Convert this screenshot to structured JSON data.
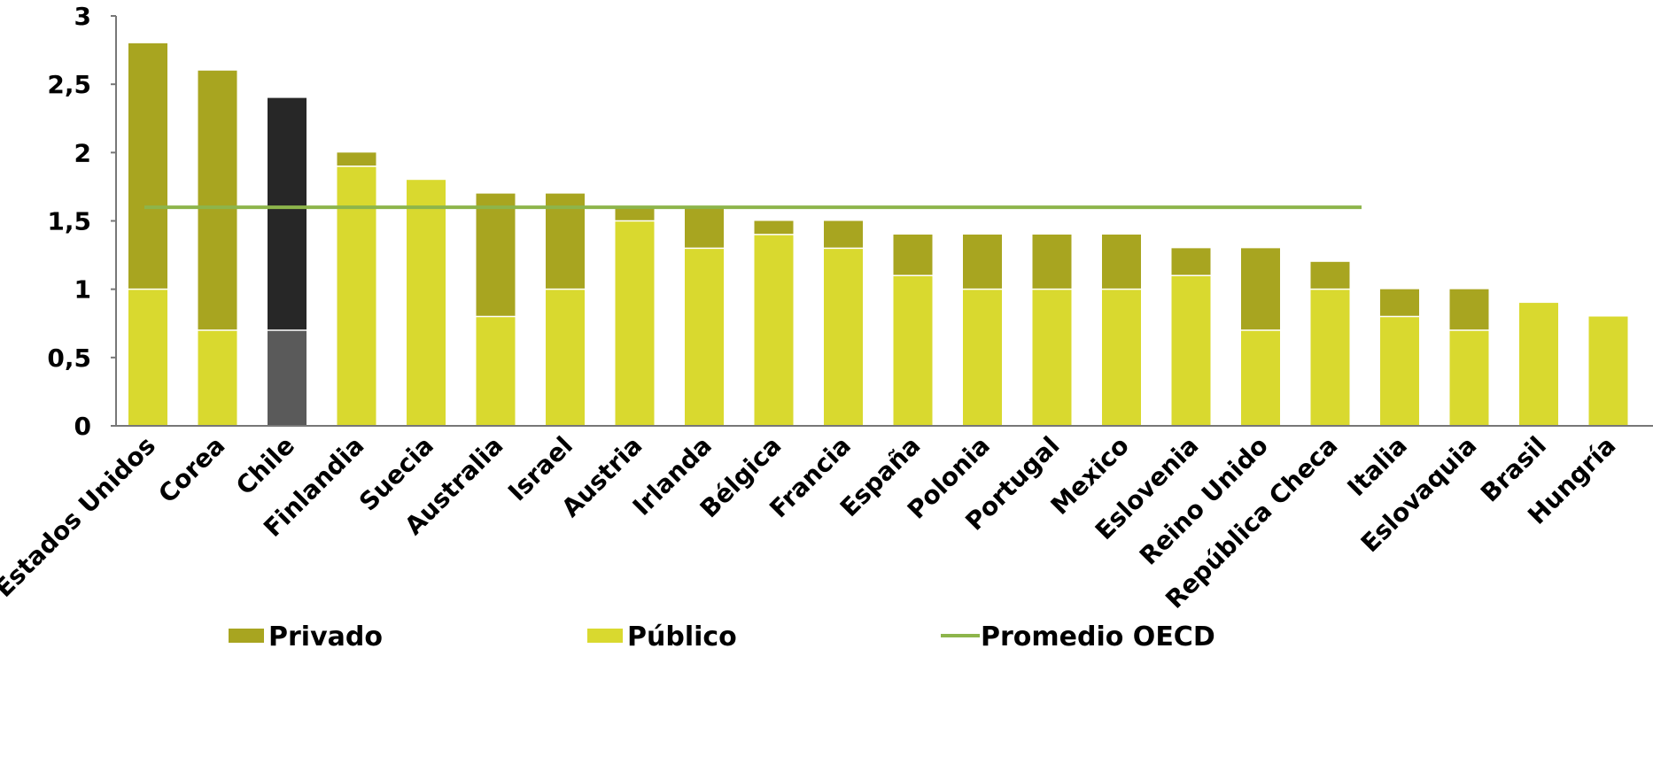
{
  "chart_data": {
    "type": "bar",
    "stacked": true,
    "title": "",
    "xlabel": "",
    "ylabel": "",
    "ylim": [
      0,
      3
    ],
    "yticks": [
      0,
      0.5,
      1,
      1.5,
      2,
      2.5,
      3
    ],
    "ytick_labels": [
      "0",
      "0,5",
      "1",
      "1,5",
      "2",
      "2,5",
      "3"
    ],
    "grid": false,
    "legend_position": "bottom",
    "categories": [
      "Estados Unidos",
      "Corea",
      "Chile",
      "Finlandia",
      "Suecia",
      "Australia",
      "Israel",
      "Austria",
      "Irlanda",
      "Bélgica",
      "Francia",
      "España",
      "Polonia",
      "Portugal",
      "Mexico",
      "Eslovenia",
      "Reino Unido",
      "República Checa",
      "Italia",
      "Eslovaquia",
      "Brasil",
      "Hungría"
    ],
    "series": [
      {
        "name": "Público",
        "values": [
          1.0,
          0.7,
          0.7,
          1.9,
          1.8,
          0.8,
          1.0,
          1.5,
          1.3,
          1.4,
          1.3,
          1.1,
          1.0,
          1.0,
          1.0,
          1.1,
          0.7,
          1.0,
          0.8,
          0.7,
          0.9,
          0.8
        ]
      },
      {
        "name": "Privado",
        "values": [
          1.8,
          1.9,
          1.7,
          0.1,
          0.0,
          0.9,
          0.7,
          0.1,
          0.3,
          0.1,
          0.2,
          0.3,
          0.4,
          0.4,
          0.4,
          0.2,
          0.6,
          0.2,
          0.2,
          0.3,
          0.0,
          0.0
        ]
      }
    ],
    "reference_line": {
      "name": "Promedio OECD",
      "value": 1.6
    },
    "highlight_category": "Chile",
    "legend": [
      "Privado",
      "Público",
      "Promedio OECD"
    ],
    "colors": {
      "privado": "#a8a520",
      "publico": "#d9d92f",
      "promedio": "#8db54b",
      "highlight_privado": "#272727",
      "highlight_publico": "#5a5a5a",
      "axis": "#777777"
    }
  }
}
